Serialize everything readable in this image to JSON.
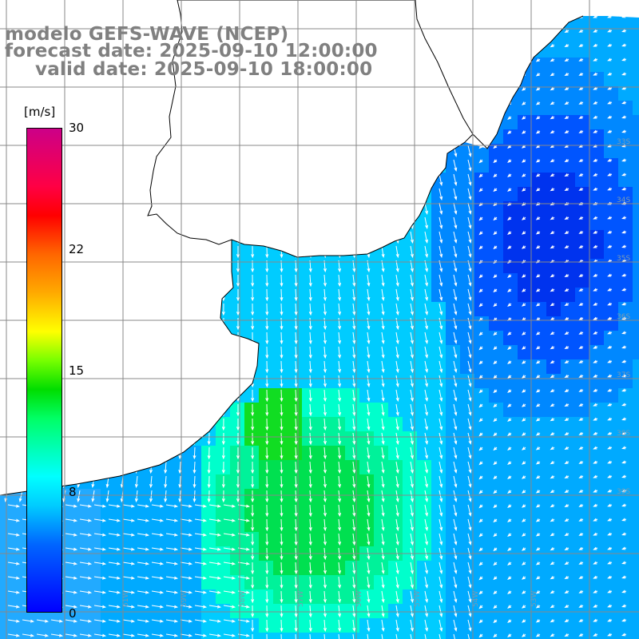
{
  "title": {
    "line1": "modelo GEFS-WAVE (NCEP)",
    "line2": "forecast date: 2025-09-10 12:00:00",
    "line3": "valid date: 2025-09-10 18:00:00"
  },
  "colorbar": {
    "unit": "[m/s]",
    "ticks": [
      "30",
      "22",
      "15",
      "8",
      "0"
    ],
    "min": 0,
    "max": 30,
    "colors": [
      "#0000ff",
      "#00ccff",
      "#00ffff",
      "#00dd00",
      "#ffff00",
      "#ff6600",
      "#ff0000",
      "#cc0088"
    ]
  },
  "map": {
    "variable": "wind speed",
    "lon_labels": [
      "61W",
      "59W",
      "58W",
      "57W",
      "56W",
      "55W",
      "54W",
      "53W"
    ],
    "lat_labels": [
      "33S",
      "34S",
      "35S",
      "36S",
      "37S",
      "38S",
      "39S"
    ],
    "colors": {
      "land": "#ffffff",
      "coast": "#000000",
      "grid": "#888888",
      "arrows": "#ffffff"
    }
  }
}
